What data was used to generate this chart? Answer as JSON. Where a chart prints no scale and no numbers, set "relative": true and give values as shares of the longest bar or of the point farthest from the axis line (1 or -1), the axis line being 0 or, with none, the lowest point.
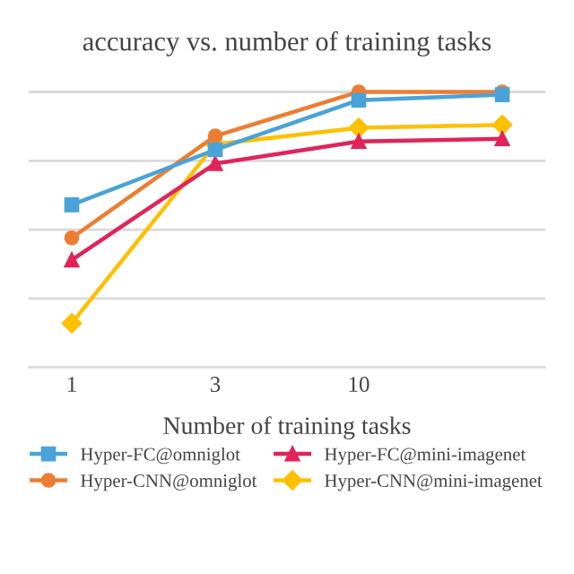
{
  "chart_data": {
    "type": "line",
    "title": "accuracy vs. number of training tasks",
    "xlabel": "Number of training tasks",
    "categories": [
      "1",
      "3",
      "10",
      null
    ],
    "relative": true,
    "grid": "y",
    "legend": "bottom",
    "series": [
      {
        "name": "Hyper-FC@omniglot",
        "color": "#4aa3d8",
        "marker": "square",
        "values": [
          0.59,
          0.79,
          0.97,
          0.99
        ]
      },
      {
        "name": "Hyper-CNN@omniglot",
        "color": "#ed7d31",
        "marker": "circle",
        "values": [
          0.47,
          0.84,
          1.0,
          1.0
        ]
      },
      {
        "name": "Hyper-FC@mini-imagenet",
        "color": "#e0245a",
        "marker": "triangle",
        "values": [
          0.39,
          0.74,
          0.82,
          0.83
        ]
      },
      {
        "name": "Hyper-CNN@mini-imagenet",
        "color": "#ffc000",
        "marker": "diamond",
        "values": [
          0.16,
          0.81,
          0.87,
          0.88
        ]
      }
    ]
  }
}
